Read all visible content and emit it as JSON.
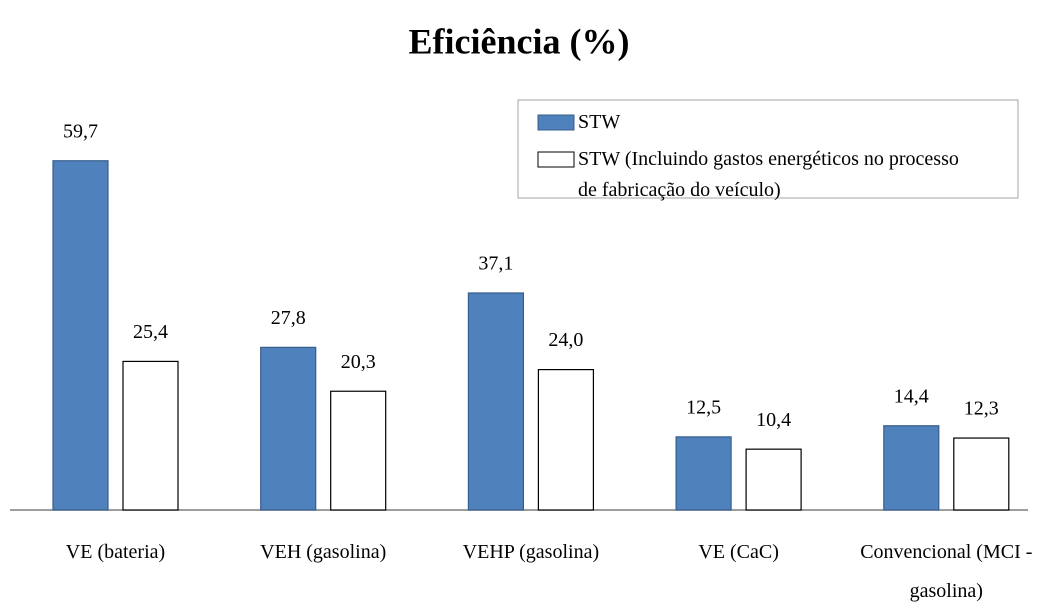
{
  "chart_data": {
    "type": "bar",
    "title": "Eficiência (%)",
    "categories": [
      "VE (bateria)",
      "VEH (gasolina)",
      "VEHP (gasolina)",
      "VE (CaC)",
      "Convencional (MCI - gasolina)"
    ],
    "series": [
      {
        "name": "STW",
        "color": "#4f81bd",
        "values": [
          59.7,
          27.8,
          37.1,
          12.5,
          14.4
        ],
        "value_labels": [
          "59,7",
          "27,8",
          "37,1",
          "12,5",
          "14,4"
        ]
      },
      {
        "name": "STW (Incluindo gastos energéticos no processo de fabricação do veículo)",
        "color": "#ffffff",
        "values": [
          25.4,
          20.3,
          24.0,
          10.4,
          12.3
        ],
        "value_labels": [
          "25,4",
          "20,3",
          "24,0",
          "10,4",
          "12,3"
        ]
      }
    ],
    "legend": "upper right"
  }
}
